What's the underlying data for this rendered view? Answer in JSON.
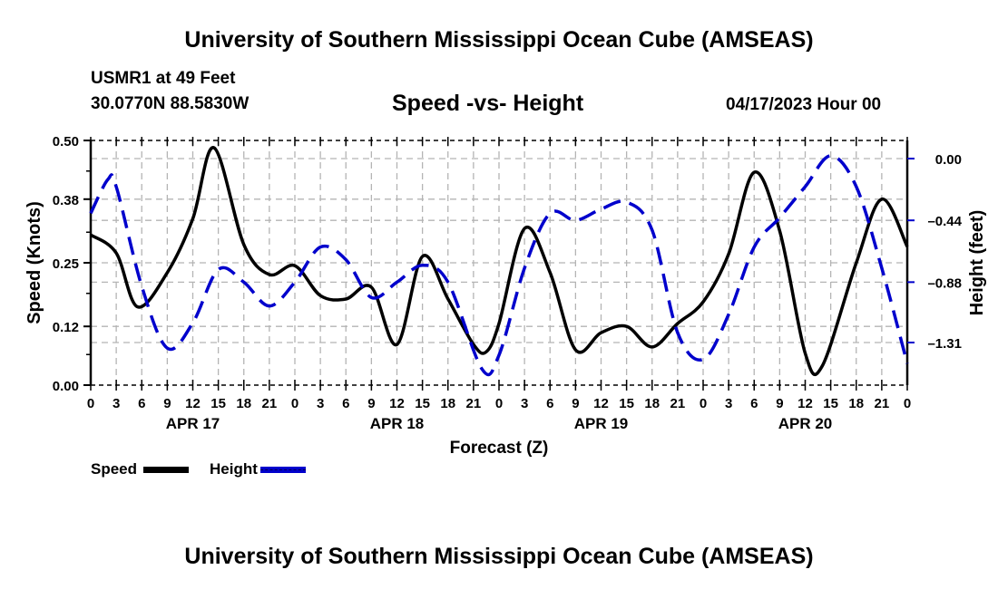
{
  "header": {
    "title": "University of Southern Mississippi Ocean Cube (AMSEAS)",
    "station": "USMR1 at 49 Feet",
    "coordinates": "30.0770N  88.5830W",
    "chart_title": "Speed -vs- Height",
    "run_time": "04/17/2023 Hour 00"
  },
  "footer": {
    "title": "University of Southern Mississippi Ocean Cube (AMSEAS)"
  },
  "legend": {
    "speed_label": "Speed",
    "height_label": "Height"
  },
  "colors": {
    "speed": "#000000",
    "height": "#0000cc",
    "grid": "#b4b4b4"
  },
  "chart_data": {
    "type": "line",
    "title": "Speed -vs- Height",
    "xlabel": "Forecast (Z)",
    "ylabel": "Speed (Knots)",
    "y2label": "Height (feet)",
    "x_unit": "forecast hour from 04/17/2023 00Z",
    "xlim": [
      0,
      96
    ],
    "ylim": [
      0.0,
      0.5
    ],
    "y2lim": [
      -1.621,
      0.13
    ],
    "x_ticks": [
      0,
      3,
      6,
      9,
      12,
      15,
      18,
      21,
      24,
      27,
      30,
      33,
      36,
      39,
      42,
      45,
      48,
      51,
      54,
      57,
      60,
      63,
      66,
      69,
      72,
      75,
      78,
      81,
      84,
      87,
      90,
      93,
      96
    ],
    "x_tick_labels": [
      "0",
      "3",
      "6",
      "9",
      "12",
      "15",
      "18",
      "21",
      "0",
      "3",
      "6",
      "9",
      "12",
      "15",
      "18",
      "21",
      "0",
      "3",
      "6",
      "9",
      "12",
      "15",
      "18",
      "21",
      "0",
      "3",
      "6",
      "9",
      "12",
      "15",
      "18",
      "21",
      "0"
    ],
    "day_labels": [
      {
        "label": "APR 17",
        "hour": 12
      },
      {
        "label": "APR 18",
        "hour": 36
      },
      {
        "label": "APR 19",
        "hour": 60
      },
      {
        "label": "APR 20",
        "hour": 84
      }
    ],
    "y_ticks": [
      0.0,
      0.12,
      0.25,
      0.38,
      0.5
    ],
    "y_tick_labels": [
      "0.00",
      "0.12",
      "0.25",
      "0.38",
      "0.50"
    ],
    "y2_ticks": [
      0.0,
      -0.44,
      -0.88,
      -1.31
    ],
    "y2_tick_labels": [
      "0.00",
      "-0.44",
      "-0.88",
      "-1.31"
    ],
    "grid": true,
    "legend_position": "bottom-left",
    "series": [
      {
        "name": "Speed",
        "axis": "left",
        "style": "solid",
        "x": [
          0,
          3,
          5.5,
          9,
          12,
          14.5,
          18,
          21,
          24,
          27,
          30,
          33,
          36,
          39,
          42,
          45,
          46.5,
          48,
          51,
          54,
          57,
          60,
          63,
          66,
          69,
          72,
          75,
          78,
          81,
          84,
          86,
          90,
          93,
          96
        ],
        "values": [
          0.307,
          0.27,
          0.16,
          0.23,
          0.34,
          0.485,
          0.287,
          0.226,
          0.244,
          0.183,
          0.176,
          0.2,
          0.083,
          0.263,
          0.176,
          0.083,
          0.068,
          0.126,
          0.32,
          0.23,
          0.072,
          0.107,
          0.12,
          0.078,
          0.126,
          0.17,
          0.268,
          0.435,
          0.315,
          0.065,
          0.039,
          0.25,
          0.38,
          0.283
        ]
      },
      {
        "name": "Height",
        "axis": "right",
        "style": "dashed",
        "x": [
          0,
          2,
          3,
          6,
          9,
          12,
          15,
          18,
          21,
          24,
          27,
          30,
          33,
          36,
          39,
          42,
          46,
          48,
          51,
          54,
          57,
          60,
          63,
          66,
          69,
          72,
          75,
          78,
          81,
          84,
          87,
          90,
          93,
          96
        ],
        "values": [
          -0.39,
          -0.15,
          -0.2,
          -0.91,
          -1.35,
          -1.17,
          -0.79,
          -0.88,
          -1.05,
          -0.88,
          -0.63,
          -0.72,
          -0.99,
          -0.88,
          -0.76,
          -0.88,
          -1.5,
          -1.4,
          -0.78,
          -0.39,
          -0.44,
          -0.36,
          -0.31,
          -0.51,
          -1.24,
          -1.43,
          -1.11,
          -0.63,
          -0.42,
          -0.2,
          0.02,
          -0.2,
          -0.78,
          -1.46
        ]
      }
    ]
  }
}
